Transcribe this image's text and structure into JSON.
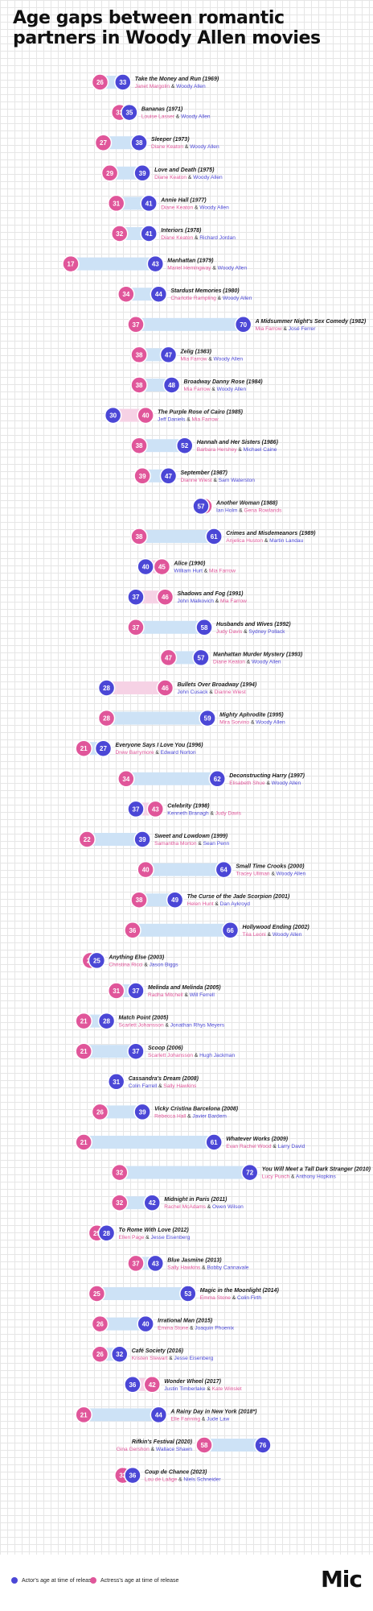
{
  "title": "Age gaps between romantic partners in Woody Allen movies",
  "colors": {
    "actor": "#4b47d6",
    "actress": "#e0569a",
    "band_actor_older": "#cde2f6",
    "band_actress_older": "#f6d2e5",
    "age_text": "#ffffff",
    "movie_text": "#1a1a1a"
  },
  "legend": {
    "actor_label": "Actor's age at time of release",
    "actress_label": "Actress's age at time of release"
  },
  "logo": "Mic",
  "chart_data": {
    "type": "dumbbell",
    "x_label": "",
    "series": [
      {
        "name": "Actor's age at time of release",
        "key": "actor"
      },
      {
        "name": "Actress's age at time of release",
        "key": "actress"
      }
    ],
    "movies": [
      {
        "title": "Take the Money and Run (1969)",
        "actress_name": "Janet Margolin",
        "actor_name": "Woody Allen",
        "actor": 33,
        "actress": 26
      },
      {
        "title": "Bananas (1971)",
        "actress_name": "Louise Lasser",
        "actor_name": "Woody Allen",
        "actor": 35,
        "actress": 32
      },
      {
        "title": "Sleeper (1973)",
        "actress_name": "Diane Keaton",
        "actor_name": "Woody Allen",
        "actor": 38,
        "actress": 27
      },
      {
        "title": "Love and Death (1975)",
        "actress_name": "Diane Keaton",
        "actor_name": "Woody Allen",
        "actor": 39,
        "actress": 29
      },
      {
        "title": "Annie Hall (1977)",
        "actress_name": "Diane Keaton",
        "actor_name": "Woody Allen",
        "actor": 41,
        "actress": 31
      },
      {
        "title": "Interiors (1978)",
        "actress_name": "Diane Keaton",
        "actor_name": "Richard Jordan",
        "actor": 41,
        "actress": 32
      },
      {
        "title": "Manhattan (1979)",
        "actress_name": "Mariel Hemingway",
        "actor_name": "Woody Allen",
        "actor": 43,
        "actress": 17
      },
      {
        "title": "Stardust Memories (1980)",
        "actress_name": "Charlotte Rampling",
        "actor_name": "Woody Allen",
        "actor": 44,
        "actress": 34
      },
      {
        "title": "A Midsummer Night's Sex Comedy (1982)",
        "actress_name": "Mia Farrow",
        "actor_name": "José Ferrer",
        "actor": 70,
        "actress": 37
      },
      {
        "title": "Zelig (1983)",
        "actress_name": "Mia Farrow",
        "actor_name": "Woody Allen",
        "actor": 47,
        "actress": 38
      },
      {
        "title": "Broadway Danny Rose (1984)",
        "actress_name": "Mia Farrow",
        "actor_name": "Woody Allen",
        "actor": 48,
        "actress": 38
      },
      {
        "title": "The Purple Rose of Cairo (1985)",
        "actor_name": "Jeff Daniels",
        "actress_name": "Mia Farrow",
        "actor": 30,
        "actress": 40,
        "actor_first": true
      },
      {
        "title": "Hannah and Her Sisters (1986)",
        "actress_name": "Barbara Hershey",
        "actor_name": "Michael Caine",
        "actor": 52,
        "actress": 38
      },
      {
        "title": "September (1987)",
        "actress_name": "Dianne Wiest",
        "actor_name": "Sam Waterston",
        "actor": 47,
        "actress": 39
      },
      {
        "title": "Another Woman (1988)",
        "actor_name": "Ian Holm",
        "actress_name": "Gena Rowlands",
        "actor": 57,
        "actress": 58,
        "actor_first": true
      },
      {
        "title": "Crimes and Misdemeanors (1989)",
        "actress_name": "Anjelica Huston",
        "actor_name": "Martin Landau",
        "actor": 61,
        "actress": 38
      },
      {
        "title": "Alice (1990)",
        "actor_name": "William Hurt",
        "actress_name": "Mia Farrow",
        "actor": 40,
        "actress": 45,
        "actor_first": true
      },
      {
        "title": "Shadows and Fog (1991)",
        "actor_name": "John Malkovich",
        "actress_name": "Mia Farrow",
        "actor": 37,
        "actress": 46,
        "actor_first": true
      },
      {
        "title": "Husbands and Wives (1992)",
        "actress_name": "Judy Davis",
        "actor_name": "Sydney Pollack",
        "actor": 58,
        "actress": 37
      },
      {
        "title": "Manhattan Murder Mystery (1993)",
        "actress_name": "Diane Keaton",
        "actor_name": "Woody Allen",
        "actor": 57,
        "actress": 47
      },
      {
        "title": "Bullets Over Broadway (1994)",
        "actor_name": "John Cusack",
        "actress_name": "Dianne Wiest",
        "actor": 28,
        "actress": 46,
        "actor_first": true
      },
      {
        "title": "Mighty Aphrodite (1995)",
        "actress_name": "Mira Sorvino",
        "actor_name": "Woody Allen",
        "actor": 59,
        "actress": 28
      },
      {
        "title": "Everyone Says I Love You (1996)",
        "actress_name": "Drew Barrymore",
        "actor_name": "Edward Norton",
        "actor": 27,
        "actress": 21
      },
      {
        "title": "Deconstructing Harry (1997)",
        "actress_name": "Elisabeth Shue",
        "actor_name": "Woody Allen",
        "actor": 62,
        "actress": 34
      },
      {
        "title": "Celebrity (1998)",
        "actor_name": "Kenneth Branagh",
        "actress_name": "Judy Davis",
        "actor": 37,
        "actress": 43,
        "actor_first": true
      },
      {
        "title": "Sweet and Lowdown (1999)",
        "actress_name": "Samantha Morton",
        "actor_name": "Sean Penn",
        "actor": 39,
        "actress": 22
      },
      {
        "title": "Small Time Crooks (2000)",
        "actress_name": "Tracey Ullman",
        "actor_name": "Woody Allen",
        "actor": 64,
        "actress": 40
      },
      {
        "title": "The Curse of the Jade Scorpion (2001)",
        "actress_name": "Helen Hunt",
        "actor_name": "Dan Aykroyd",
        "actor": 49,
        "actress": 38
      },
      {
        "title": "Hollywood Ending (2002)",
        "actress_name": "Téa Leoni",
        "actor_name": "Woody Allen",
        "actor": 66,
        "actress": 36
      },
      {
        "title": "Anything Else (2003)",
        "actress_name": "Christina Ricci",
        "actor_name": "Jason Biggs",
        "actor": 25,
        "actress": 23
      },
      {
        "title": "Melinda and Melinda (2005)",
        "actress_name": "Radha Mitchell",
        "actor_name": "Will Ferrell",
        "actor": 37,
        "actress": 31
      },
      {
        "title": "Match Point (2005)",
        "actress_name": "Scarlett Johansson",
        "actor_name": "Jonathan Rhys Meyers",
        "actor": 28,
        "actress": 21
      },
      {
        "title": "Scoop (2006)",
        "actress_name": "Scarlett Johansson",
        "actor_name": "Hugh Jackman",
        "actor": 37,
        "actress": 21
      },
      {
        "title": "Cassandra's Dream (2008)",
        "actor_name": "Colin Farrell",
        "actress_name": "Sally Hawkins",
        "actor": 31,
        "actress": 31,
        "actor_first": true
      },
      {
        "title": "Vicky Cristina Barcelona (2008)",
        "actress_name": "Rebecca Hall",
        "actor_name": "Javier Bardem",
        "actor": 39,
        "actress": 26
      },
      {
        "title": "Whatever Works (2009)",
        "actress_name": "Evan Rachel Wood",
        "actor_name": "Larry David",
        "actor": 61,
        "actress": 21
      },
      {
        "title": "You Will Meet a Tall Dark Stranger (2010)",
        "actress_name": "Lucy Punch",
        "actor_name": "Anthony Hopkins",
        "actor": 72,
        "actress": 32
      },
      {
        "title": "Midnight in Paris (2011)",
        "actress_name": "Rachel McAdams",
        "actor_name": "Owen Wilson",
        "actor": 42,
        "actress": 32
      },
      {
        "title": "To Rome With Love (2012)",
        "actress_name": "Ellen Page",
        "actor_name": "Jesse Eisenberg",
        "actor": 28,
        "actress": 25
      },
      {
        "title": "Blue Jasmine (2013)",
        "actress_name": "Sally Hawkins",
        "actor_name": "Bobby Cannavale",
        "actor": 43,
        "actress": 37
      },
      {
        "title": "Magic in the Moonlight (2014)",
        "actress_name": "Emma Stone",
        "actor_name": "Colin Firth",
        "actor": 53,
        "actress": 25
      },
      {
        "title": "Irrational Man (2015)",
        "actress_name": "Emma Stone",
        "actor_name": "Joaquin Phoenix",
        "actor": 40,
        "actress": 26
      },
      {
        "title": "Café Society (2016)",
        "actress_name": "Kristen Stewart",
        "actor_name": "Jesse Eisenberg",
        "actor": 32,
        "actress": 26
      },
      {
        "title": "Wonder Wheel (2017)",
        "actor_name": "Justin Timberlake",
        "actress_name": "Kate Winslet",
        "actor": 36,
        "actress": 42,
        "actor_first": true
      },
      {
        "title": "A Rainy Day in New York (2018*)",
        "actress_name": "Elle Fanning",
        "actor_name": "Jude Law",
        "actor": 44,
        "actress": 21
      },
      {
        "title": "Rifkin's Festival (2020)",
        "actress_name": "Gina Gershon",
        "actor_name": "Wallace Shawn",
        "actor": 76,
        "actress": 58
      },
      {
        "title": "Coup de Chance (2023)",
        "actress_name": "Lou de Laâge",
        "actor_name": "Niels Schneider",
        "actor": 36,
        "actress": 33
      }
    ]
  }
}
